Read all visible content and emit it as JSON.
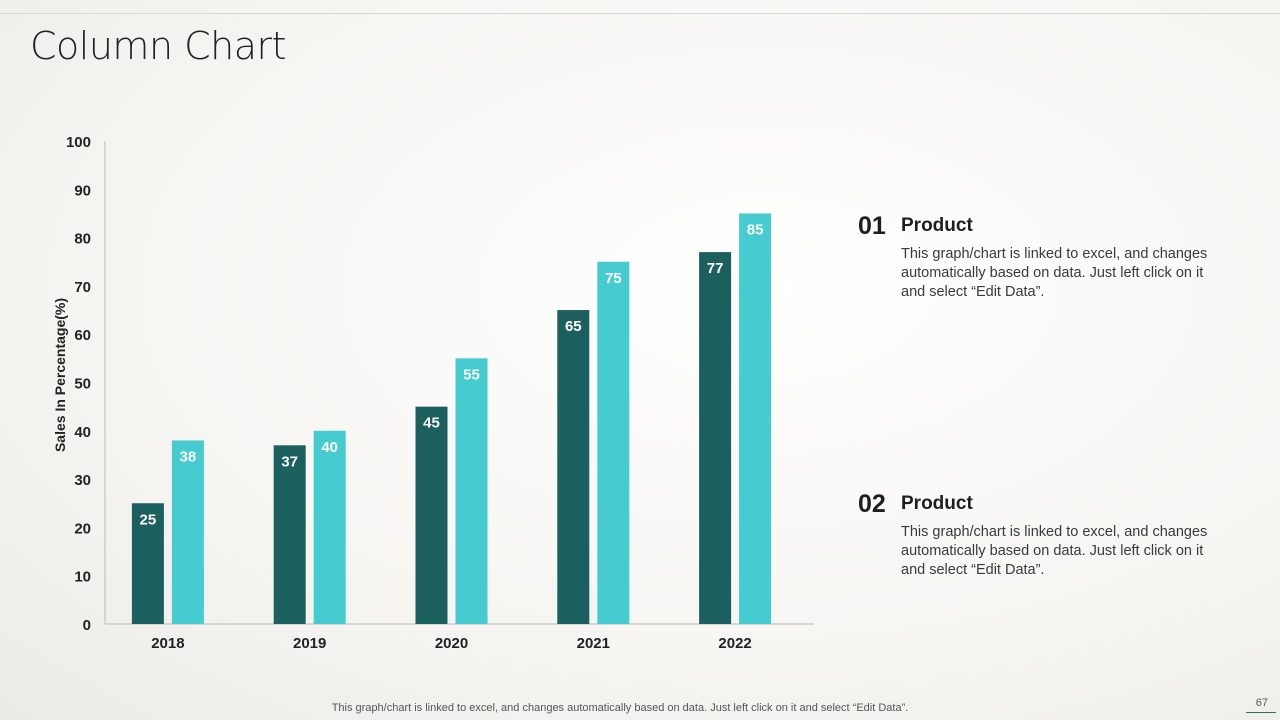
{
  "slide": {
    "title": "Column Chart",
    "footer": "This graph/chart is linked to excel,  and changes automatically based on data. Just left click on it and select “Edit Data”.",
    "page_number": "67"
  },
  "products": [
    {
      "number": "01",
      "name": "Product",
      "description": "This graph/chart is linked to excel, and changes automatically based on data. Just left click on it and select “Edit Data”."
    },
    {
      "number": "02",
      "name": "Product",
      "description": "This graph/chart is linked to excel, and changes automatically based on data. Just left click on it and select “Edit Data”."
    }
  ],
  "colors": {
    "series1": "#1b5f5e",
    "series2": "#45cbd0",
    "axis": "#b8b8b8",
    "label": "#222222"
  },
  "chart_data": {
    "type": "bar",
    "title": "",
    "xlabel": "",
    "ylabel": "Sales In Percentage(%)",
    "categories": [
      "2018",
      "2019",
      "2020",
      "2021",
      "2022"
    ],
    "series": [
      {
        "name": "Product 01",
        "values": [
          25,
          37,
          45,
          65,
          77
        ]
      },
      {
        "name": "Product 02",
        "values": [
          38,
          40,
          55,
          75,
          85
        ]
      }
    ],
    "ylim": [
      0,
      100
    ],
    "yticks": [
      0,
      10,
      20,
      30,
      40,
      50,
      60,
      70,
      80,
      90,
      100
    ],
    "grid": false,
    "data_labels": true
  }
}
